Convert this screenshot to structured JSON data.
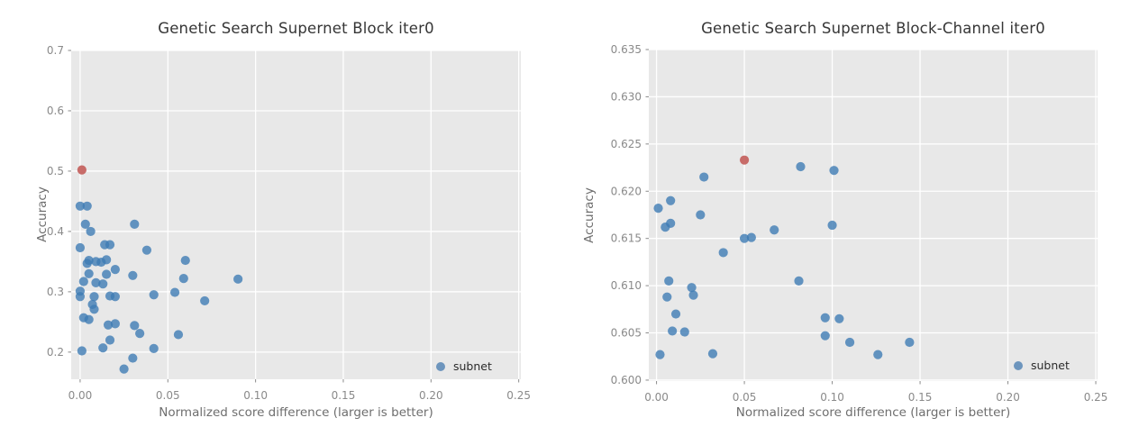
{
  "figure": {
    "background": "#ffffff",
    "panel_background": "#e8e8e8",
    "grid_color": "#ffffff",
    "tick_color": "#8a8a8a",
    "blue": "#3f7cb4",
    "red": "#c35d5a"
  },
  "chart_data": [
    {
      "type": "scatter",
      "title": "Genetic Search Supernet Block iter0",
      "xlabel": "Normalized score difference (larger is better)",
      "ylabel": "Accuracy",
      "xlim": [
        -0.0051,
        0.2512
      ],
      "ylim": [
        0.155,
        0.7
      ],
      "xticks": [
        0.0,
        0.05,
        0.1,
        0.15,
        0.2,
        0.25
      ],
      "xtick_labels": [
        "0.00",
        "0.05",
        "0.10",
        "0.15",
        "0.20",
        "0.25"
      ],
      "yticks": [
        0.2,
        0.3,
        0.4,
        0.5,
        0.6,
        0.7
      ],
      "ytick_labels": [
        "0.2",
        "0.3",
        "0.4",
        "0.5",
        "0.6",
        "0.7"
      ],
      "grid": true,
      "legend": {
        "label": "subnet",
        "position": "lower right"
      },
      "series": [
        {
          "name": "subnet",
          "color": "#3f7cb4",
          "points": [
            [
              0.0,
              0.442
            ],
            [
              0.004,
              0.442
            ],
            [
              0.003,
              0.412
            ],
            [
              0.031,
              0.412
            ],
            [
              0.006,
              0.4
            ],
            [
              0.0,
              0.373
            ],
            [
              0.014,
              0.378
            ],
            [
              0.017,
              0.378
            ],
            [
              0.038,
              0.369
            ],
            [
              0.06,
              0.352
            ],
            [
              0.005,
              0.352
            ],
            [
              0.009,
              0.35
            ],
            [
              0.015,
              0.353
            ],
            [
              0.004,
              0.347
            ],
            [
              0.012,
              0.349
            ],
            [
              0.02,
              0.337
            ],
            [
              0.03,
              0.327
            ],
            [
              0.005,
              0.33
            ],
            [
              0.015,
              0.329
            ],
            [
              0.002,
              0.317
            ],
            [
              0.009,
              0.315
            ],
            [
              0.013,
              0.313
            ],
            [
              0.059,
              0.322
            ],
            [
              0.09,
              0.321
            ],
            [
              0.0,
              0.301
            ],
            [
              0.0,
              0.292
            ],
            [
              0.008,
              0.292
            ],
            [
              0.017,
              0.293
            ],
            [
              0.02,
              0.292
            ],
            [
              0.042,
              0.295
            ],
            [
              0.054,
              0.299
            ],
            [
              0.007,
              0.279
            ],
            [
              0.008,
              0.271
            ],
            [
              0.071,
              0.285
            ],
            [
              0.002,
              0.257
            ],
            [
              0.005,
              0.254
            ],
            [
              0.016,
              0.245
            ],
            [
              0.02,
              0.247
            ],
            [
              0.031,
              0.244
            ],
            [
              0.034,
              0.231
            ],
            [
              0.056,
              0.229
            ],
            [
              0.017,
              0.22
            ],
            [
              0.013,
              0.207
            ],
            [
              0.001,
              0.202
            ],
            [
              0.042,
              0.206
            ],
            [
              0.03,
              0.19
            ],
            [
              0.025,
              0.172
            ]
          ]
        }
      ],
      "highlight": {
        "color": "#c35d5a",
        "point": [
          0.001,
          0.502
        ]
      }
    },
    {
      "type": "scatter",
      "title": "Genetic Search Supernet Block-Channel iter0",
      "xlabel": "Normalized score difference (larger is better)",
      "ylabel": "Accuracy",
      "xlim": [
        -0.0044,
        0.251
      ],
      "ylim": [
        0.5999,
        0.635
      ],
      "xticks": [
        0.0,
        0.05,
        0.1,
        0.15,
        0.2,
        0.25
      ],
      "xtick_labels": [
        "0.00",
        "0.05",
        "0.10",
        "0.15",
        "0.20",
        "0.25"
      ],
      "yticks": [
        0.6,
        0.605,
        0.61,
        0.615,
        0.62,
        0.625,
        0.63,
        0.635
      ],
      "ytick_labels": [
        "0.600",
        "0.605",
        "0.610",
        "0.615",
        "0.620",
        "0.625",
        "0.630",
        "0.635"
      ],
      "grid": true,
      "legend": {
        "label": "subnet",
        "position": "lower right"
      },
      "series": [
        {
          "name": "subnet",
          "color": "#3f7cb4",
          "points": [
            [
              0.001,
              0.6182
            ],
            [
              0.008,
              0.619
            ],
            [
              0.027,
              0.6215
            ],
            [
              0.025,
              0.6175
            ],
            [
              0.005,
              0.6162
            ],
            [
              0.008,
              0.6166
            ],
            [
              0.067,
              0.6159
            ],
            [
              0.05,
              0.615
            ],
            [
              0.054,
              0.6151
            ],
            [
              0.038,
              0.6135
            ],
            [
              0.082,
              0.6226
            ],
            [
              0.101,
              0.6222
            ],
            [
              0.1,
              0.6164
            ],
            [
              0.007,
              0.6105
            ],
            [
              0.02,
              0.6098
            ],
            [
              0.021,
              0.609
            ],
            [
              0.006,
              0.6088
            ],
            [
              0.011,
              0.607
            ],
            [
              0.009,
              0.6052
            ],
            [
              0.016,
              0.6051
            ],
            [
              0.002,
              0.6027
            ],
            [
              0.032,
              0.6028
            ],
            [
              0.081,
              0.6105
            ],
            [
              0.096,
              0.6066
            ],
            [
              0.104,
              0.6065
            ],
            [
              0.096,
              0.6047
            ],
            [
              0.11,
              0.604
            ],
            [
              0.126,
              0.6027
            ],
            [
              0.144,
              0.604
            ]
          ]
        }
      ],
      "highlight": {
        "color": "#c35d5a",
        "point": [
          0.05,
          0.6233
        ]
      }
    }
  ]
}
